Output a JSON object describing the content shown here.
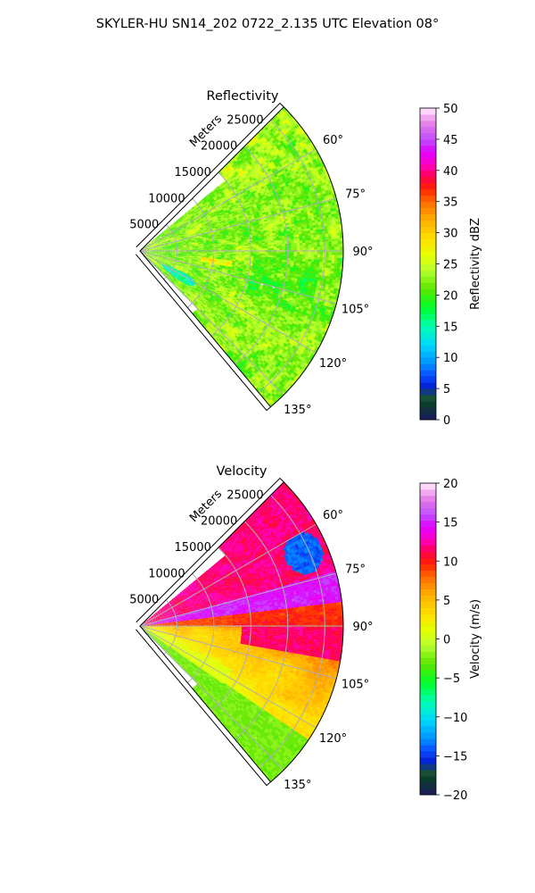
{
  "figure": {
    "suptitle": "SKYLER-HU  SN14_202  0722_2.135 UTC Elevation 08°"
  },
  "chart_data": [
    {
      "type": "heatmap",
      "subtype": "polar-sector-radar-ppi",
      "title": "Reflectivity",
      "radial_axis_label": "Meters",
      "range_ticks": [
        "5000",
        "10000",
        "15000",
        "20000",
        "25000"
      ],
      "range_values": [
        5000,
        10000,
        15000,
        20000,
        25000
      ],
      "rmax": 27500,
      "azimuth_ticks": [
        "60°",
        "75°",
        "90°",
        "105°",
        "120°",
        "135°"
      ],
      "azimuth_values": [
        60,
        75,
        90,
        105,
        120,
        135
      ],
      "azimuth_range": [
        45,
        140
      ],
      "grid": true,
      "colorbar": {
        "label": "Reflectivity dBZ",
        "vmin": 0,
        "vmax": 50,
        "ticks": [
          "0",
          "5",
          "10",
          "15",
          "20",
          "25",
          "30",
          "35",
          "40",
          "45",
          "50"
        ]
      },
      "field_summary": {
        "dominant_range": [
          22,
          32
        ],
        "scattered_max": 38,
        "low_patch": 17,
        "description_colors": [
          "yellow",
          "orange",
          "yellow-green"
        ]
      }
    },
    {
      "type": "heatmap",
      "subtype": "polar-sector-radar-ppi",
      "title": "Velocity",
      "radial_axis_label": "Meters",
      "range_ticks": [
        "5000",
        "10000",
        "15000",
        "20000",
        "25000"
      ],
      "range_values": [
        5000,
        10000,
        15000,
        20000,
        25000
      ],
      "rmax": 27500,
      "azimuth_ticks": [
        "60°",
        "75°",
        "90°",
        "105°",
        "120°",
        "135°"
      ],
      "azimuth_values": [
        60,
        75,
        90,
        105,
        120,
        135
      ],
      "azimuth_range": [
        45,
        140
      ],
      "grid": true,
      "colorbar": {
        "label": "Velocity (m/s)",
        "vmin": -20,
        "vmax": 20,
        "ticks": [
          "−20",
          "−15",
          "−10",
          "−5",
          "0",
          "5",
          "10",
          "15",
          "20"
        ]
      },
      "field_summary": {
        "north_sector": 14,
        "south_sector_near": 3,
        "south_sector_far": 8,
        "aliased_patch": -13
      }
    }
  ],
  "colormap": {
    "stops": [
      [
        0.0,
        "#1a1a5e"
      ],
      [
        0.05,
        "#0b3d2e"
      ],
      [
        0.08,
        "#1f5a3a"
      ],
      [
        0.1,
        "#0018c8"
      ],
      [
        0.14,
        "#0b4bff"
      ],
      [
        0.18,
        "#0090ff"
      ],
      [
        0.24,
        "#00d8ff"
      ],
      [
        0.3,
        "#00ffb0"
      ],
      [
        0.36,
        "#00ff2a"
      ],
      [
        0.42,
        "#5ae600"
      ],
      [
        0.48,
        "#b8ff30"
      ],
      [
        0.53,
        "#e6ff00"
      ],
      [
        0.58,
        "#ffe000"
      ],
      [
        0.62,
        "#ffc000"
      ],
      [
        0.66,
        "#ff9c00"
      ],
      [
        0.7,
        "#ff6a00"
      ],
      [
        0.74,
        "#ff2400"
      ],
      [
        0.78,
        "#ff004c"
      ],
      [
        0.82,
        "#ff00c8"
      ],
      [
        0.86,
        "#e000ff"
      ],
      [
        0.9,
        "#c050ff"
      ],
      [
        0.94,
        "#e070e8"
      ],
      [
        0.97,
        "#f2a8f0"
      ],
      [
        1.0,
        "#ffeefe"
      ]
    ]
  }
}
